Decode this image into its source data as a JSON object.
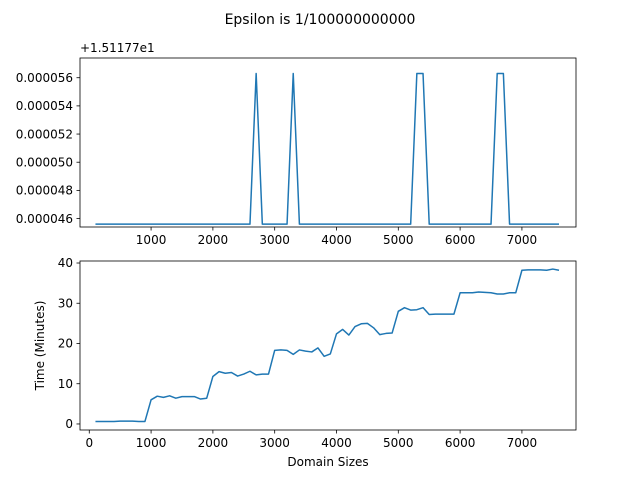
{
  "figure": {
    "suptitle": "Epsilon is 1/100000000000"
  },
  "chart_data": [
    {
      "type": "line",
      "title": "",
      "xlabel": "",
      "ylabel": "",
      "offset_label": "+1.51177e1",
      "xlim": [
        -150,
        7875
      ],
      "ylim": [
        4.54e-05,
        5.74e-05
      ],
      "xticks": [
        1000,
        2000,
        3000,
        4000,
        5000,
        6000,
        7000
      ],
      "xtick_labels": [
        "1000",
        "2000",
        "3000",
        "4000",
        "5000",
        "6000",
        "7000"
      ],
      "yticks": [
        4.6e-05,
        4.8e-05,
        5e-05,
        5.2e-05,
        5.4e-05,
        5.6e-05
      ],
      "ytick_labels": [
        "0.000046",
        "0.000048",
        "0.000050",
        "0.000052",
        "0.000054",
        "0.000056"
      ],
      "grid": false,
      "series": [
        {
          "color": "#1f77b4",
          "x": [
            100,
            2600,
            2700,
            2800,
            3200,
            3300,
            3400,
            5200,
            5300,
            5400,
            5500,
            6500,
            6600,
            6700,
            6800,
            7600
          ],
          "y": [
            4.56e-05,
            4.56e-05,
            5.63e-05,
            4.56e-05,
            4.56e-05,
            5.63e-05,
            4.56e-05,
            4.56e-05,
            5.63e-05,
            5.63e-05,
            4.56e-05,
            4.56e-05,
            5.63e-05,
            5.63e-05,
            4.56e-05,
            4.56e-05
          ]
        }
      ]
    },
    {
      "type": "line",
      "title": "",
      "xlabel": "Domain Sizes",
      "ylabel": "Time (Minutes)",
      "xlim": [
        -150,
        7875
      ],
      "ylim": [
        -1.5,
        40.5
      ],
      "xticks": [
        0,
        1000,
        2000,
        3000,
        4000,
        5000,
        6000,
        7000
      ],
      "xtick_labels": [
        "0",
        "1000",
        "2000",
        "3000",
        "4000",
        "5000",
        "6000",
        "7000"
      ],
      "yticks": [
        0,
        10,
        20,
        30,
        40
      ],
      "ytick_labels": [
        "0",
        "10",
        "20",
        "30",
        "40"
      ],
      "grid": false,
      "series": [
        {
          "color": "#1f77b4",
          "x": [
            100,
            200,
            300,
            400,
            500,
            600,
            700,
            800,
            900,
            1000,
            1100,
            1200,
            1300,
            1400,
            1500,
            1600,
            1700,
            1800,
            1900,
            2000,
            2100,
            2200,
            2300,
            2400,
            2500,
            2600,
            2700,
            2800,
            2900,
            3000,
            3100,
            3200,
            3300,
            3400,
            3500,
            3600,
            3700,
            3800,
            3900,
            4000,
            4100,
            4200,
            4300,
            4400,
            4500,
            4600,
            4700,
            4800,
            4900,
            5000,
            5100,
            5200,
            5300,
            5400,
            5500,
            5600,
            5700,
            5800,
            5900,
            6000,
            6100,
            6200,
            6300,
            6400,
            6500,
            6600,
            6700,
            6800,
            6900,
            7000,
            7100,
            7200,
            7300,
            7400,
            7500,
            7600
          ],
          "y": [
            0.6,
            0.6,
            0.6,
            0.6,
            0.7,
            0.7,
            0.7,
            0.6,
            0.6,
            6.0,
            6.9,
            6.6,
            7.0,
            6.4,
            6.8,
            6.8,
            6.8,
            6.2,
            6.4,
            11.8,
            13.0,
            12.6,
            12.8,
            11.9,
            12.4,
            13.1,
            12.2,
            12.4,
            12.4,
            18.3,
            18.4,
            18.3,
            17.3,
            18.4,
            18.1,
            17.9,
            18.9,
            16.8,
            17.4,
            22.4,
            23.5,
            22.1,
            24.2,
            24.9,
            25.0,
            23.9,
            22.2,
            22.5,
            22.6,
            28.0,
            28.9,
            28.3,
            28.4,
            28.9,
            27.2,
            27.3,
            27.3,
            27.3,
            27.3,
            32.6,
            32.6,
            32.6,
            32.8,
            32.7,
            32.6,
            32.3,
            32.3,
            32.6,
            32.6,
            38.2,
            38.3,
            38.3,
            38.3,
            38.2,
            38.5,
            38.2
          ]
        }
      ]
    }
  ]
}
